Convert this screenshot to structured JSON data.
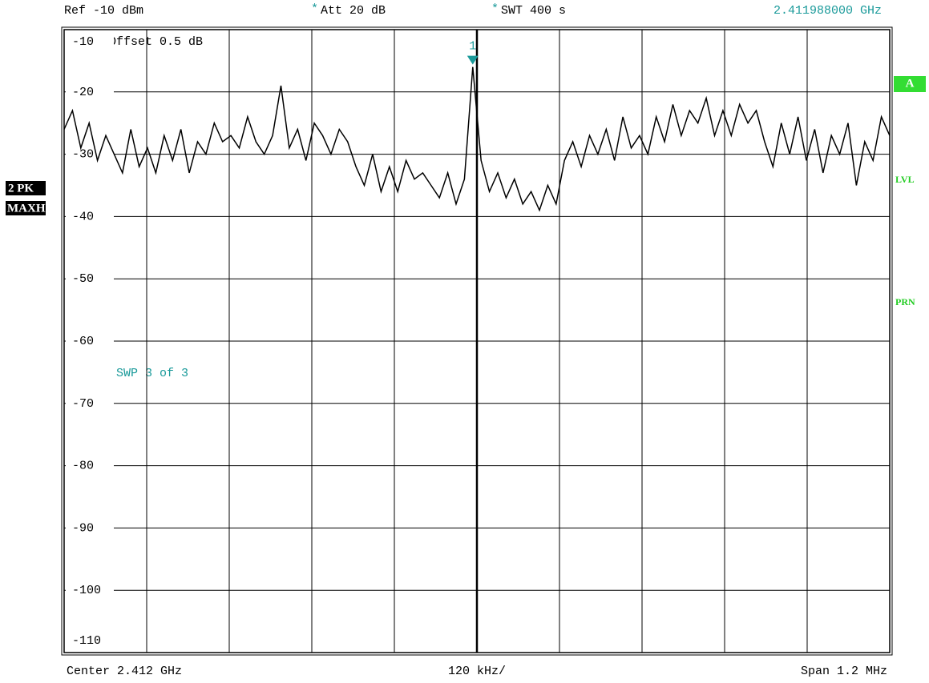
{
  "screen": {
    "ref": "Ref -10 dBm",
    "att_star": "*",
    "att": "Att  20 dB",
    "swt_star": "*",
    "swt": "SWT 400 s",
    "marker_freq": "2.411988000 GHz",
    "offset": "Offset  0.5 dB",
    "sweep": "SWP     3 of     3",
    "trace_mode": "2 PK",
    "detector": "MAXH",
    "side_a": "A",
    "side_lvl": "LVL",
    "side_prn": "PRN",
    "center": "Center 2.412 GHz",
    "div": "120 kHz/",
    "span": "Span 1.2 MHz"
  },
  "chart_data": {
    "type": "line",
    "color": "#000000",
    "grid": true,
    "ylim": [
      -110,
      -10
    ],
    "yticks": [
      -10,
      -20,
      -30,
      -40,
      -50,
      -60,
      -70,
      -80,
      -90,
      -100,
      -110
    ],
    "marker": {
      "label": "1",
      "index": 49
    },
    "categories": [
      null,
      null,
      null,
      null,
      null,
      null,
      null,
      null,
      null,
      null,
      null,
      null,
      null,
      null,
      null,
      null,
      null,
      null,
      null,
      null,
      null,
      null,
      null,
      null,
      null,
      null,
      null,
      null,
      null,
      null,
      null,
      null,
      null,
      null,
      null,
      null,
      null,
      null,
      null,
      null,
      null,
      null,
      null,
      null,
      null,
      null,
      null,
      null,
      null,
      null,
      null,
      null,
      null,
      null,
      null,
      null,
      null,
      null,
      null,
      null,
      null,
      null,
      null,
      null,
      null,
      null,
      null,
      null,
      null,
      null,
      null,
      null,
      null,
      null,
      null,
      null,
      null,
      null,
      null,
      null,
      null,
      null,
      null,
      null,
      null,
      null,
      null,
      null,
      null,
      null,
      null,
      null,
      null,
      null,
      null,
      null,
      null,
      null,
      null,
      null
    ],
    "values": [
      -26,
      -23,
      -29,
      -25,
      -31,
      -27,
      -30,
      -33,
      -26,
      -32,
      -29,
      -33,
      -27,
      -31,
      -26,
      -33,
      -28,
      -30,
      -25,
      -28,
      -27,
      -29,
      -24,
      -28,
      -30,
      -27,
      -19,
      -29,
      -26,
      -31,
      -25,
      -27,
      -30,
      -26,
      -28,
      -32,
      -35,
      -30,
      -36,
      -32,
      -36,
      -31,
      -34,
      -33,
      -35,
      -37,
      -33,
      -38,
      -34,
      -16,
      -31,
      -36,
      -33,
      -37,
      -34,
      -38,
      -36,
      -39,
      -35,
      -38,
      -31,
      -28,
      -32,
      -27,
      -30,
      -26,
      -31,
      -24,
      -29,
      -27,
      -30,
      -24,
      -28,
      -22,
      -27,
      -23,
      -25,
      -21,
      -27,
      -23,
      -27,
      -22,
      -25,
      -23,
      -28,
      -32,
      -25,
      -30,
      -24,
      -31,
      -26,
      -33,
      -27,
      -30,
      -25,
      -35,
      -28,
      -31,
      -24,
      -27
    ]
  }
}
